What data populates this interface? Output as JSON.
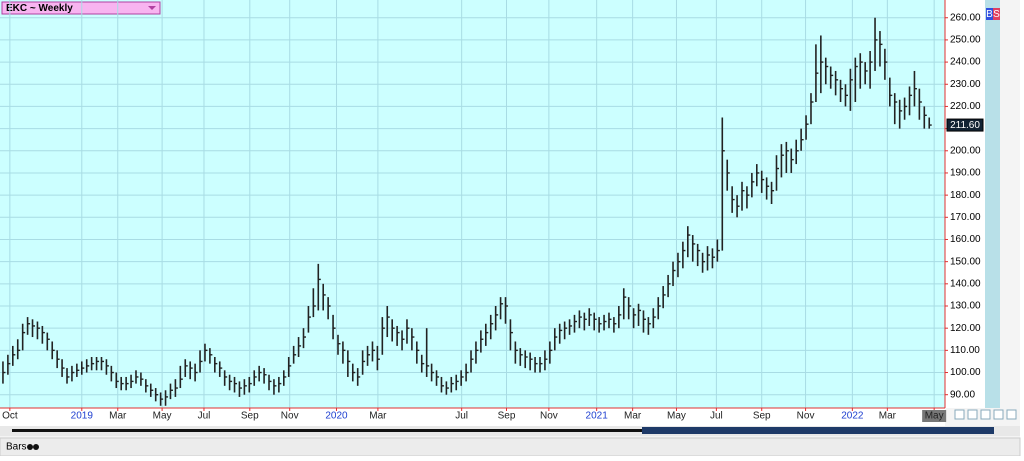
{
  "chart_data": {
    "type": "ohlc",
    "title": "EKC ~ Weekly",
    "color": "#222222",
    "background": "#ccffff",
    "grid": true,
    "xlim": [
      -0.6,
      191.2
    ],
    "ylim": [
      84,
      268
    ],
    "yticks": [
      {
        "value": 90,
        "label": "90.00"
      },
      {
        "value": 100,
        "label": "100.00"
      },
      {
        "value": 110,
        "label": "110.00"
      },
      {
        "value": 120,
        "label": "120.00"
      },
      {
        "value": 130,
        "label": "130.00"
      },
      {
        "value": 140,
        "label": "140.00"
      },
      {
        "value": 150,
        "label": "150.00"
      },
      {
        "value": 160,
        "label": "160.00"
      },
      {
        "value": 170,
        "label": "170.00"
      },
      {
        "value": 180,
        "label": "180.00"
      },
      {
        "value": 190,
        "label": "190.00"
      },
      {
        "value": 200,
        "label": "200.00"
      },
      {
        "value": 210,
        "label": "210.00"
      },
      {
        "value": 220,
        "label": "220.00"
      },
      {
        "value": 230,
        "label": "230.00"
      },
      {
        "value": 240,
        "label": "240.00"
      },
      {
        "value": 250,
        "label": "250.00"
      },
      {
        "value": 260,
        "label": "260.00"
      }
    ],
    "xticks": [
      {
        "value": 1.4,
        "label": "Oct"
      },
      {
        "value": 16,
        "label": "2019"
      },
      {
        "value": 23.3,
        "label": "Mar"
      },
      {
        "value": 32.3,
        "label": "May"
      },
      {
        "value": 40.8,
        "label": "Jul"
      },
      {
        "value": 50.1,
        "label": "Sep"
      },
      {
        "value": 58.2,
        "label": "Nov"
      },
      {
        "value": 67.7,
        "label": "2020"
      },
      {
        "value": 76.1,
        "label": "Mar"
      },
      {
        "value": 93.1,
        "label": "Jul"
      },
      {
        "value": 102.2,
        "label": "Sep"
      },
      {
        "value": 110.8,
        "label": "Nov"
      },
      {
        "value": 120.5,
        "label": "2021"
      },
      {
        "value": 127.8,
        "label": "Mar"
      },
      {
        "value": 136.7,
        "label": "May"
      },
      {
        "value": 144.8,
        "label": "Jul"
      },
      {
        "value": 154,
        "label": "Sep"
      },
      {
        "value": 162.9,
        "label": "Nov"
      },
      {
        "value": 172.4,
        "label": "2022"
      },
      {
        "value": 179.5,
        "label": "Mar"
      },
      {
        "value": 189,
        "label": "May"
      }
    ],
    "high": [
      105,
      108,
      112,
      115,
      122,
      125,
      124,
      123,
      121,
      118,
      114,
      110,
      106,
      102,
      103,
      104,
      105,
      106,
      107,
      107,
      107,
      106,
      103,
      100,
      98,
      98,
      99,
      101,
      100,
      97,
      95,
      93,
      91,
      92,
      95,
      97,
      103,
      106,
      105,
      104,
      110,
      113,
      111,
      107,
      105,
      101,
      99,
      98,
      96,
      97,
      98,
      101,
      103,
      102,
      99,
      97,
      98,
      101,
      107,
      112,
      116,
      120,
      130,
      138,
      149,
      140,
      134,
      126,
      117,
      114,
      110,
      104,
      102,
      110,
      112,
      114,
      112,
      125,
      130,
      124,
      121,
      119,
      124,
      120,
      114,
      108,
      120,
      104,
      101,
      98,
      96,
      98,
      99,
      101,
      104,
      110,
      114,
      119,
      122,
      126,
      130,
      134,
      134,
      124,
      114,
      111,
      110,
      109,
      107,
      107,
      110,
      114,
      120,
      122,
      123,
      124,
      126,
      128,
      127,
      129,
      127,
      125,
      126,
      127,
      125,
      130,
      138,
      134,
      129,
      131,
      128,
      125,
      129,
      134,
      139,
      144,
      150,
      154,
      159,
      166,
      162,
      158,
      154,
      157,
      156,
      160,
      215,
      196,
      184,
      180,
      186,
      184,
      190,
      194,
      191,
      188,
      186,
      198,
      203,
      204,
      201,
      205,
      210,
      216,
      226,
      248,
      252,
      242,
      238,
      236,
      232,
      230,
      237,
      242,
      244,
      240,
      245,
      260,
      254,
      246,
      233,
      226,
      223,
      224,
      229,
      236,
      228,
      220,
      215
    ],
    "low": [
      95,
      99,
      103,
      106,
      110,
      117,
      116,
      115,
      113,
      110,
      106,
      102,
      98,
      95,
      96,
      98,
      99,
      100,
      101,
      101,
      101,
      99,
      96,
      93,
      92,
      92,
      93,
      95,
      94,
      91,
      89,
      87,
      85,
      85,
      88,
      89,
      93,
      98,
      97,
      96,
      100,
      105,
      104,
      100,
      98,
      94,
      92,
      91,
      89,
      90,
      91,
      94,
      96,
      95,
      92,
      90,
      91,
      94,
      98,
      104,
      107,
      111,
      118,
      125,
      128,
      128,
      124,
      115,
      108,
      104,
      98,
      96,
      94,
      99,
      103,
      105,
      101,
      108,
      116,
      114,
      112,
      110,
      113,
      110,
      104,
      100,
      98,
      96,
      94,
      91,
      90,
      91,
      92,
      94,
      96,
      100,
      104,
      109,
      112,
      115,
      119,
      124,
      122,
      110,
      104,
      103,
      102,
      101,
      100,
      100,
      101,
      104,
      110,
      113,
      115,
      117,
      118,
      120,
      119,
      121,
      119,
      118,
      119,
      120,
      118,
      120,
      124,
      124,
      120,
      121,
      118,
      117,
      120,
      124,
      129,
      134,
      139,
      143,
      147,
      152,
      150,
      148,
      145,
      146,
      147,
      150,
      155,
      182,
      172,
      170,
      173,
      174,
      179,
      184,
      181,
      178,
      176,
      182,
      188,
      190,
      190,
      194,
      200,
      205,
      212,
      222,
      226,
      230,
      228,
      225,
      222,
      220,
      218,
      222,
      228,
      230,
      228,
      236,
      238,
      232,
      220,
      212,
      210,
      214,
      216,
      220,
      214,
      210,
      210
    ],
    "close": [
      100,
      104,
      108,
      110,
      118,
      122,
      121,
      120,
      118,
      115,
      110,
      106,
      102,
      98,
      100,
      101,
      102,
      103,
      104,
      105,
      105,
      103,
      100,
      96,
      95,
      95,
      96,
      98,
      97,
      94,
      92,
      90,
      88,
      89,
      92,
      93,
      97,
      103,
      102,
      100,
      105,
      110,
      108,
      104,
      102,
      98,
      96,
      95,
      93,
      94,
      95,
      98,
      100,
      99,
      96,
      94,
      95,
      98,
      103,
      108,
      112,
      116,
      125,
      130,
      142,
      135,
      130,
      120,
      113,
      110,
      105,
      100,
      98,
      105,
      108,
      110,
      106,
      120,
      125,
      120,
      118,
      115,
      120,
      116,
      110,
      104,
      103,
      100,
      98,
      94,
      93,
      95,
      96,
      98,
      100,
      106,
      110,
      115,
      118,
      122,
      126,
      131,
      130,
      118,
      110,
      108,
      107,
      106,
      104,
      104,
      106,
      110,
      116,
      119,
      120,
      121,
      123,
      125,
      124,
      126,
      124,
      122,
      123,
      124,
      122,
      126,
      134,
      130,
      126,
      128,
      124,
      122,
      125,
      130,
      135,
      140,
      146,
      150,
      155,
      162,
      158,
      155,
      150,
      153,
      152,
      155,
      200,
      190,
      178,
      175,
      182,
      180,
      186,
      190,
      187,
      184,
      182,
      192,
      198,
      200,
      196,
      200,
      205,
      212,
      222,
      235,
      240,
      238,
      234,
      232,
      228,
      225,
      232,
      238,
      240,
      236,
      240,
      250,
      248,
      240,
      225,
      222,
      218,
      220,
      225,
      228,
      222,
      216,
      211.6
    ],
    "last_price": {
      "value": 211.6,
      "label": "211.60"
    }
  },
  "toolbar": {
    "buttons": [
      "B",
      "S"
    ]
  },
  "footer": {
    "mode": "Bars"
  }
}
